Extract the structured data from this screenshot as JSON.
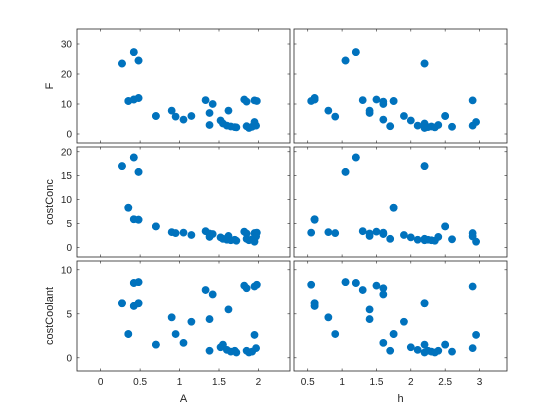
{
  "chart_data": {
    "type": "scatter",
    "layout": "scatter-matrix",
    "marker_color": "#0072BD",
    "x_variables": [
      {
        "label": "A",
        "lim": [
          -0.3,
          2.4
        ],
        "ticks": [
          "0",
          "0.5",
          "1",
          "1.5",
          "2"
        ],
        "tick_values": [
          0,
          0.5,
          1,
          1.5,
          2
        ]
      },
      {
        "label": "h",
        "lim": [
          0.3,
          3.4
        ],
        "ticks": [
          "0.5",
          "1",
          "1.5",
          "2",
          "2.5",
          "3"
        ],
        "tick_values": [
          0.5,
          1,
          1.5,
          2,
          2.5,
          3
        ]
      }
    ],
    "y_variables": [
      {
        "label": "F",
        "lim": [
          -3,
          35
        ],
        "ticks": [
          "0",
          "10",
          "20",
          "30"
        ],
        "tick_values": [
          0,
          10,
          20,
          30
        ]
      },
      {
        "label": "costConc",
        "lim": [
          -2,
          21
        ],
        "ticks": [
          "0",
          "5",
          "10",
          "15",
          "20"
        ],
        "tick_values": [
          0,
          5,
          10,
          15,
          20
        ]
      },
      {
        "label": "costCoolant",
        "lim": [
          -1.5,
          11
        ],
        "ticks": [
          "0",
          "5",
          "10"
        ],
        "tick_values": [
          0,
          5,
          10
        ]
      }
    ],
    "observations": [
      {
        "A": 0.27,
        "h": 2.2,
        "F": 23.5,
        "costConc": 17.0,
        "costCoolant": 6.2
      },
      {
        "A": 0.27,
        "h": 2.2,
        "F": 23.5,
        "costConc": 17.0,
        "costCoolant": 6.2
      },
      {
        "A": 0.42,
        "h": 1.2,
        "F": 27.3,
        "costConc": 18.8,
        "costCoolant": 8.5
      },
      {
        "A": 0.42,
        "h": 1.2,
        "F": 27.3,
        "costConc": 18.8,
        "costCoolant": 8.5
      },
      {
        "A": 0.48,
        "h": 1.05,
        "F": 24.5,
        "costConc": 15.8,
        "costCoolant": 8.6
      },
      {
        "A": 0.48,
        "h": 1.05,
        "F": 24.5,
        "costConc": 15.8,
        "costCoolant": 8.6
      },
      {
        "A": 0.35,
        "h": 1.75,
        "F": 11.0,
        "costConc": 8.3,
        "costCoolant": 2.7
      },
      {
        "A": 0.35,
        "h": 1.75,
        "F": 11.0,
        "costConc": 8.3,
        "costCoolant": 2.7
      },
      {
        "A": 0.42,
        "h": 0.6,
        "F": 11.5,
        "costConc": 5.9,
        "costCoolant": 5.9
      },
      {
        "A": 0.42,
        "h": 0.6,
        "F": 11.5,
        "costConc": 5.9,
        "costCoolant": 5.9
      },
      {
        "A": 0.48,
        "h": 0.6,
        "F": 12.0,
        "costConc": 5.8,
        "costCoolant": 6.2
      },
      {
        "A": 0.48,
        "h": 0.6,
        "F": 12.0,
        "costConc": 5.8,
        "costCoolant": 6.2
      },
      {
        "A": 0.7,
        "h": 2.5,
        "F": 6.0,
        "costConc": 4.4,
        "costCoolant": 1.5
      },
      {
        "A": 0.7,
        "h": 2.5,
        "F": 6.0,
        "costConc": 4.4,
        "costCoolant": 1.5
      },
      {
        "A": 0.9,
        "h": 0.8,
        "F": 7.8,
        "costConc": 3.2,
        "costCoolant": 4.6
      },
      {
        "A": 0.95,
        "h": 0.9,
        "F": 5.8,
        "costConc": 3.0,
        "costCoolant": 2.7
      },
      {
        "A": 1.05,
        "h": 1.6,
        "F": 4.8,
        "costConc": 3.1,
        "costCoolant": 1.7
      },
      {
        "A": 1.15,
        "h": 1.9,
        "F": 6.0,
        "costConc": 2.6,
        "costCoolant": 4.1
      },
      {
        "A": 1.33,
        "h": 1.3,
        "F": 11.3,
        "costConc": 3.4,
        "costCoolant": 7.7
      },
      {
        "A": 1.38,
        "h": 1.4,
        "F": 7.0,
        "costConc": 2.9,
        "costCoolant": 4.4
      },
      {
        "A": 1.38,
        "h": 2.4,
        "F": 3.0,
        "costConc": 2.2,
        "costCoolant": 0.8
      },
      {
        "A": 1.42,
        "h": 1.6,
        "F": 10.0,
        "costConc": 2.8,
        "costCoolant": 7.2
      },
      {
        "A": 1.52,
        "h": 2.0,
        "F": 4.5,
        "costConc": 2.1,
        "costCoolant": 1.2
      },
      {
        "A": 1.55,
        "h": 2.2,
        "F": 3.5,
        "costConc": 1.8,
        "costCoolant": 1.5
      },
      {
        "A": 1.6,
        "h": 2.1,
        "F": 2.8,
        "costConc": 1.6,
        "costCoolant": 0.9
      },
      {
        "A": 1.62,
        "h": 1.4,
        "F": 7.8,
        "costConc": 2.4,
        "costCoolant": 5.5
      },
      {
        "A": 1.65,
        "h": 2.3,
        "F": 2.5,
        "costConc": 1.5,
        "costCoolant": 0.7
      },
      {
        "A": 1.7,
        "h": 2.25,
        "F": 2.3,
        "costConc": 1.6,
        "costCoolant": 0.8
      },
      {
        "A": 1.72,
        "h": 2.35,
        "F": 2.2,
        "costConc": 1.4,
        "costCoolant": 0.6
      },
      {
        "A": 1.82,
        "h": 1.5,
        "F": 11.5,
        "costConc": 3.3,
        "costCoolant": 8.2
      },
      {
        "A": 1.85,
        "h": 1.6,
        "F": 10.8,
        "costConc": 2.9,
        "costCoolant": 7.9
      },
      {
        "A": 1.85,
        "h": 1.7,
        "F": 2.6,
        "costConc": 1.8,
        "costCoolant": 0.8
      },
      {
        "A": 1.88,
        "h": 2.2,
        "F": 2.0,
        "costConc": 1.5,
        "costCoolant": 0.6
      },
      {
        "A": 1.92,
        "h": 2.6,
        "F": 2.4,
        "costConc": 1.7,
        "costCoolant": 0.7
      },
      {
        "A": 1.95,
        "h": 2.9,
        "F": 11.2,
        "costConc": 3.0,
        "costCoolant": 8.1
      },
      {
        "A": 1.95,
        "h": 2.95,
        "F": 4.0,
        "costConc": 1.2,
        "costCoolant": 2.6
      },
      {
        "A": 1.97,
        "h": 2.9,
        "F": 2.8,
        "costConc": 2.3,
        "costCoolant": 1.1
      },
      {
        "A": 1.98,
        "h": 0.55,
        "F": 11.0,
        "costConc": 3.1,
        "costCoolant": 8.3
      }
    ]
  }
}
